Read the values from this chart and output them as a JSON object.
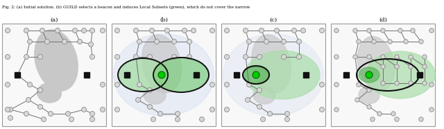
{
  "fig_width": 6.4,
  "fig_height": 1.86,
  "dpi": 100,
  "background_color": "#ffffff",
  "panel_bg": "#f8f8f8",
  "border_color": "#999999",
  "obstacle_color": "#c8c8c8",
  "node_color": "#d8d8d8",
  "node_edge": "#888888",
  "path_color": "#707070",
  "green_light": "#aaddaa",
  "green_mid": "#77cc77",
  "green_dark": "#44aa44",
  "green_node": "#00cc00",
  "green_node_edge": "#006600",
  "blue_ellipse": "#c8d8f0",
  "black": "#111111",
  "start_goal_color": "#111111",
  "caption": "Fig. 2: (a) Initial solution. (b) GUILD selects a beacon and induces Local Subsets (green), which do not cover the narrow",
  "subfig_labels": [
    "(a)",
    "(b)",
    "(c)",
    "(d)"
  ]
}
